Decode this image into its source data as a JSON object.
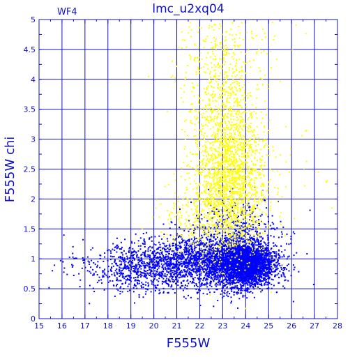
{
  "chart_data": {
    "type": "scatter",
    "title": "lmc_u2xq04",
    "panel_label": "WF4",
    "xlabel": "F555W",
    "ylabel": "F555W chi",
    "xlim": [
      15,
      28
    ],
    "ylim": [
      0,
      5
    ],
    "xticks": [
      "15",
      "16",
      "17",
      "18",
      "19",
      "20",
      "21",
      "22",
      "23",
      "24",
      "25",
      "26",
      "27",
      "28"
    ],
    "yticks": [
      "0",
      "0.5",
      "1",
      "1.5",
      "2",
      "2.5",
      "3",
      "3.5",
      "4",
      "4.5",
      "5"
    ],
    "grid": true,
    "colors": {
      "axis": "#1010cc",
      "background": "#ffffff"
    },
    "series": [
      {
        "color": "#0000ff",
        "clusters": [
          {
            "x_mean": 24.0,
            "x_sd": 0.6,
            "y_mean": 0.9,
            "y_sd": 0.18,
            "count": 2600
          },
          {
            "x_mean": 22.5,
            "x_sd": 1.4,
            "y_mean": 0.95,
            "y_sd": 0.22,
            "count": 2000
          },
          {
            "x_mean": 19.5,
            "x_sd": 1.0,
            "y_mean": 0.85,
            "y_sd": 0.2,
            "count": 600
          },
          {
            "x_mean": 23.5,
            "x_sd": 1.0,
            "y_mean": 1.45,
            "y_sd": 0.3,
            "count": 400
          },
          {
            "x_mean": 17.5,
            "x_sd": 0.9,
            "y_mean": 0.8,
            "y_sd": 0.2,
            "count": 60
          }
        ]
      },
      {
        "color": "#ffff00",
        "clusters": [
          {
            "x_mean": 23.3,
            "x_sd": 0.8,
            "y_mean": 2.2,
            "y_sd": 0.6,
            "count": 1600
          },
          {
            "x_mean": 23.0,
            "x_sd": 0.7,
            "y_mean": 3.4,
            "y_sd": 0.7,
            "count": 700
          },
          {
            "x_mean": 23.2,
            "x_sd": 1.2,
            "y_mean": 4.4,
            "y_sd": 0.4,
            "count": 150
          },
          {
            "x_mean": 21.5,
            "x_sd": 0.8,
            "y_mean": 1.6,
            "y_sd": 0.3,
            "count": 150
          },
          {
            "x_mean": 25.5,
            "x_sd": 1.0,
            "y_mean": 3.0,
            "y_sd": 1.2,
            "count": 60
          }
        ]
      }
    ]
  }
}
